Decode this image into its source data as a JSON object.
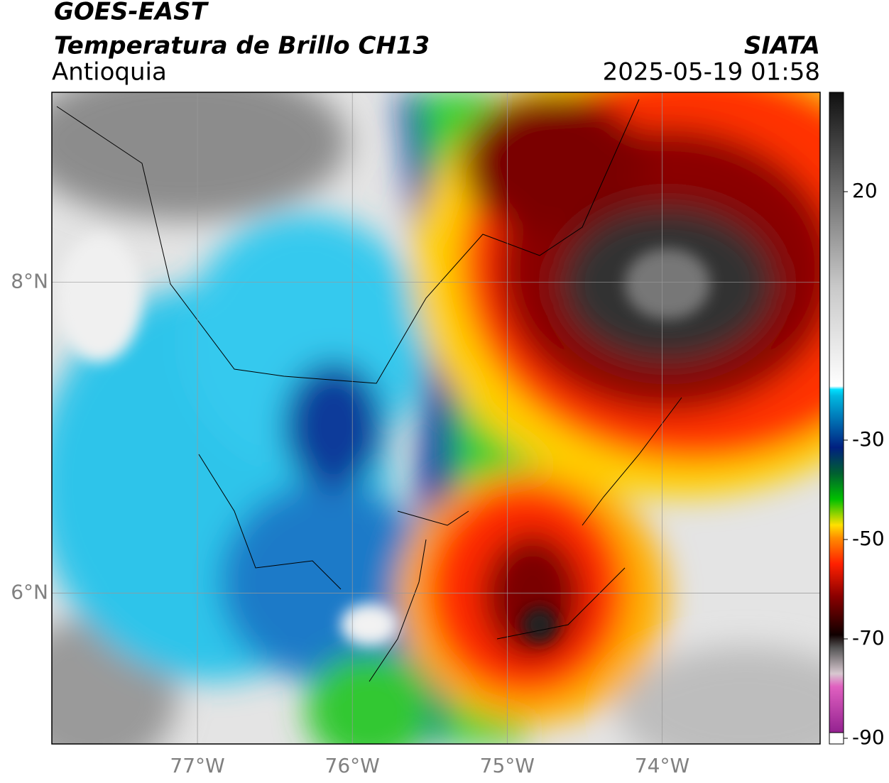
{
  "header": {
    "title": "GOES-EAST",
    "subtitle": "Temperatura de Brillo CH13",
    "region": "Antioquia",
    "source": "SIATA",
    "datetime": "2025-05-19 01:58"
  },
  "map": {
    "xlim": [
      -77.94,
      -72.98
    ],
    "ylim": [
      5.03,
      9.22
    ],
    "xticks": [
      {
        "value": -77,
        "label": "77°W"
      },
      {
        "value": -76,
        "label": "76°W"
      },
      {
        "value": -75,
        "label": "75°W"
      },
      {
        "value": -74,
        "label": "74°W"
      }
    ],
    "yticks": [
      {
        "value": 6,
        "label": "6°N"
      },
      {
        "value": 8,
        "label": "8°N"
      }
    ],
    "grid": true
  },
  "colorbar": {
    "ylim": [
      -90,
      40
    ],
    "ticks": [
      20,
      -30,
      -50,
      -70,
      -90
    ]
  }
}
